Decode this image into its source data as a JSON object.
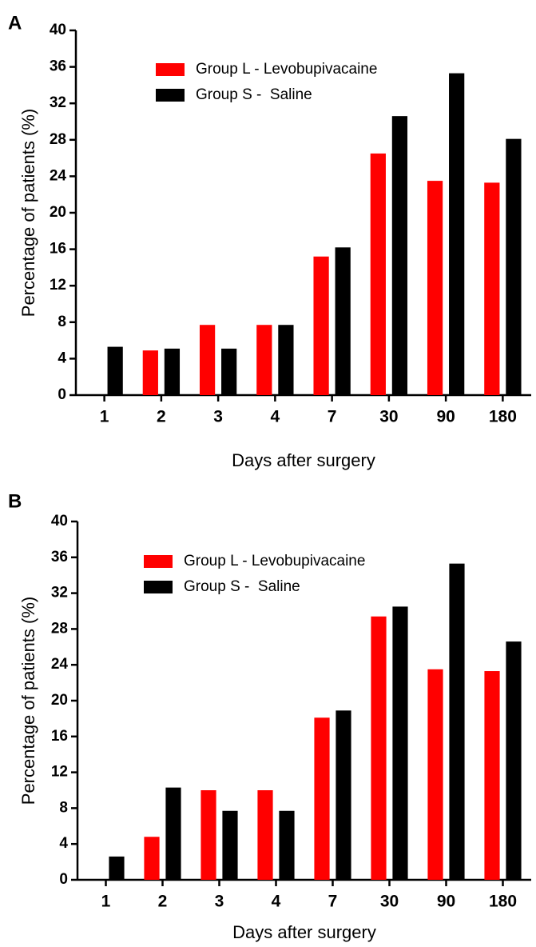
{
  "chart_data": [
    {
      "type": "bar",
      "panel": "A",
      "xlabel": "Days after surgery",
      "ylabel": "Percentage of patients (%)",
      "categories": [
        "1",
        "2",
        "3",
        "4",
        "7",
        "30",
        "90",
        "180"
      ],
      "series": [
        {
          "name": "Group L - Levobupivacaine",
          "color": "#ff0000",
          "values": [
            0,
            4.9,
            7.7,
            7.7,
            15.2,
            26.5,
            23.5,
            23.3
          ]
        },
        {
          "name": "Group S -  Saline",
          "color": "#000000",
          "values": [
            5.3,
            5.1,
            5.1,
            7.7,
            16.2,
            30.6,
            35.3,
            28.1
          ]
        }
      ],
      "ylim": [
        0,
        40
      ],
      "yticks": [
        0,
        4,
        8,
        12,
        16,
        20,
        24,
        28,
        32,
        36,
        40
      ],
      "legend": "upper left"
    },
    {
      "type": "bar",
      "panel": "B",
      "xlabel": "Days after surgery",
      "ylabel": "Percentage of patients (%)",
      "categories": [
        "1",
        "2",
        "3",
        "4",
        "7",
        "30",
        "90",
        "180"
      ],
      "series": [
        {
          "name": "Group L - Levobupivacaine",
          "color": "#ff0000",
          "values": [
            0,
            4.8,
            10.0,
            10.0,
            18.1,
            29.4,
            23.5,
            23.3
          ]
        },
        {
          "name": "Group S -  Saline",
          "color": "#000000",
          "values": [
            2.6,
            10.3,
            7.7,
            7.7,
            18.9,
            30.5,
            35.3,
            26.6
          ]
        }
      ],
      "ylim": [
        0,
        40
      ],
      "yticks": [
        0,
        4,
        8,
        12,
        16,
        20,
        24,
        28,
        32,
        36,
        40
      ],
      "legend": "upper left"
    }
  ]
}
